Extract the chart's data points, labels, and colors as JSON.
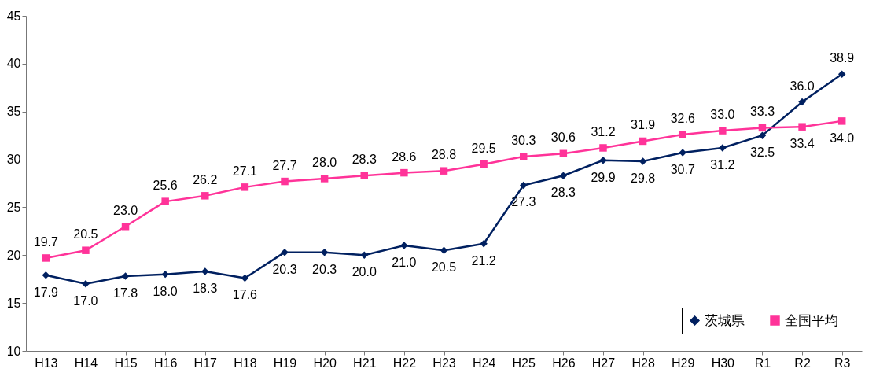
{
  "chart_data": {
    "type": "line",
    "categories": [
      "H13",
      "H14",
      "H15",
      "H16",
      "H17",
      "H18",
      "H19",
      "H20",
      "H21",
      "H22",
      "H23",
      "H24",
      "H25",
      "H26",
      "H27",
      "H28",
      "H29",
      "H30",
      "R1",
      "R2",
      "R3"
    ],
    "series": [
      {
        "name": "茨城県",
        "color": "#002060",
        "marker": "diamond",
        "values": [
          17.9,
          17.0,
          17.8,
          18.0,
          18.3,
          17.6,
          20.3,
          20.3,
          20.0,
          21.0,
          20.5,
          21.2,
          27.3,
          28.3,
          29.9,
          29.8,
          30.7,
          31.2,
          32.5,
          36.0,
          38.9
        ],
        "value_labels": [
          "17.9",
          "17.0",
          "17.8",
          "18.0",
          "18.3",
          "17.6",
          "20.3",
          "20.3",
          "20.0",
          "21.0",
          "20.5",
          "21.2",
          "27.3",
          "28.3",
          "29.9",
          "29.8",
          "30.7",
          "31.2",
          "32.5",
          "36.0",
          "38.9"
        ]
      },
      {
        "name": "全国平均",
        "color": "#ff3399",
        "marker": "square",
        "values": [
          19.7,
          20.5,
          23.0,
          25.6,
          26.2,
          27.1,
          27.7,
          28.0,
          28.3,
          28.6,
          28.8,
          29.5,
          30.3,
          30.6,
          31.2,
          31.9,
          32.6,
          33.0,
          33.3,
          33.4,
          34.0
        ],
        "value_labels": [
          "19.7",
          "20.5",
          "23.0",
          "25.6",
          "26.2",
          "27.1",
          "27.7",
          "28.0",
          "28.3",
          "28.6",
          "28.8",
          "29.5",
          "30.3",
          "30.6",
          "31.2",
          "31.9",
          "32.6",
          "33.0",
          "33.3",
          "33.4",
          "34.0"
        ]
      }
    ],
    "ylim": [
      10,
      45
    ],
    "yticks": [
      10,
      15,
      20,
      25,
      30,
      35,
      40,
      45
    ],
    "grid": false,
    "legend": "bottom right",
    "line_style": "solid"
  }
}
